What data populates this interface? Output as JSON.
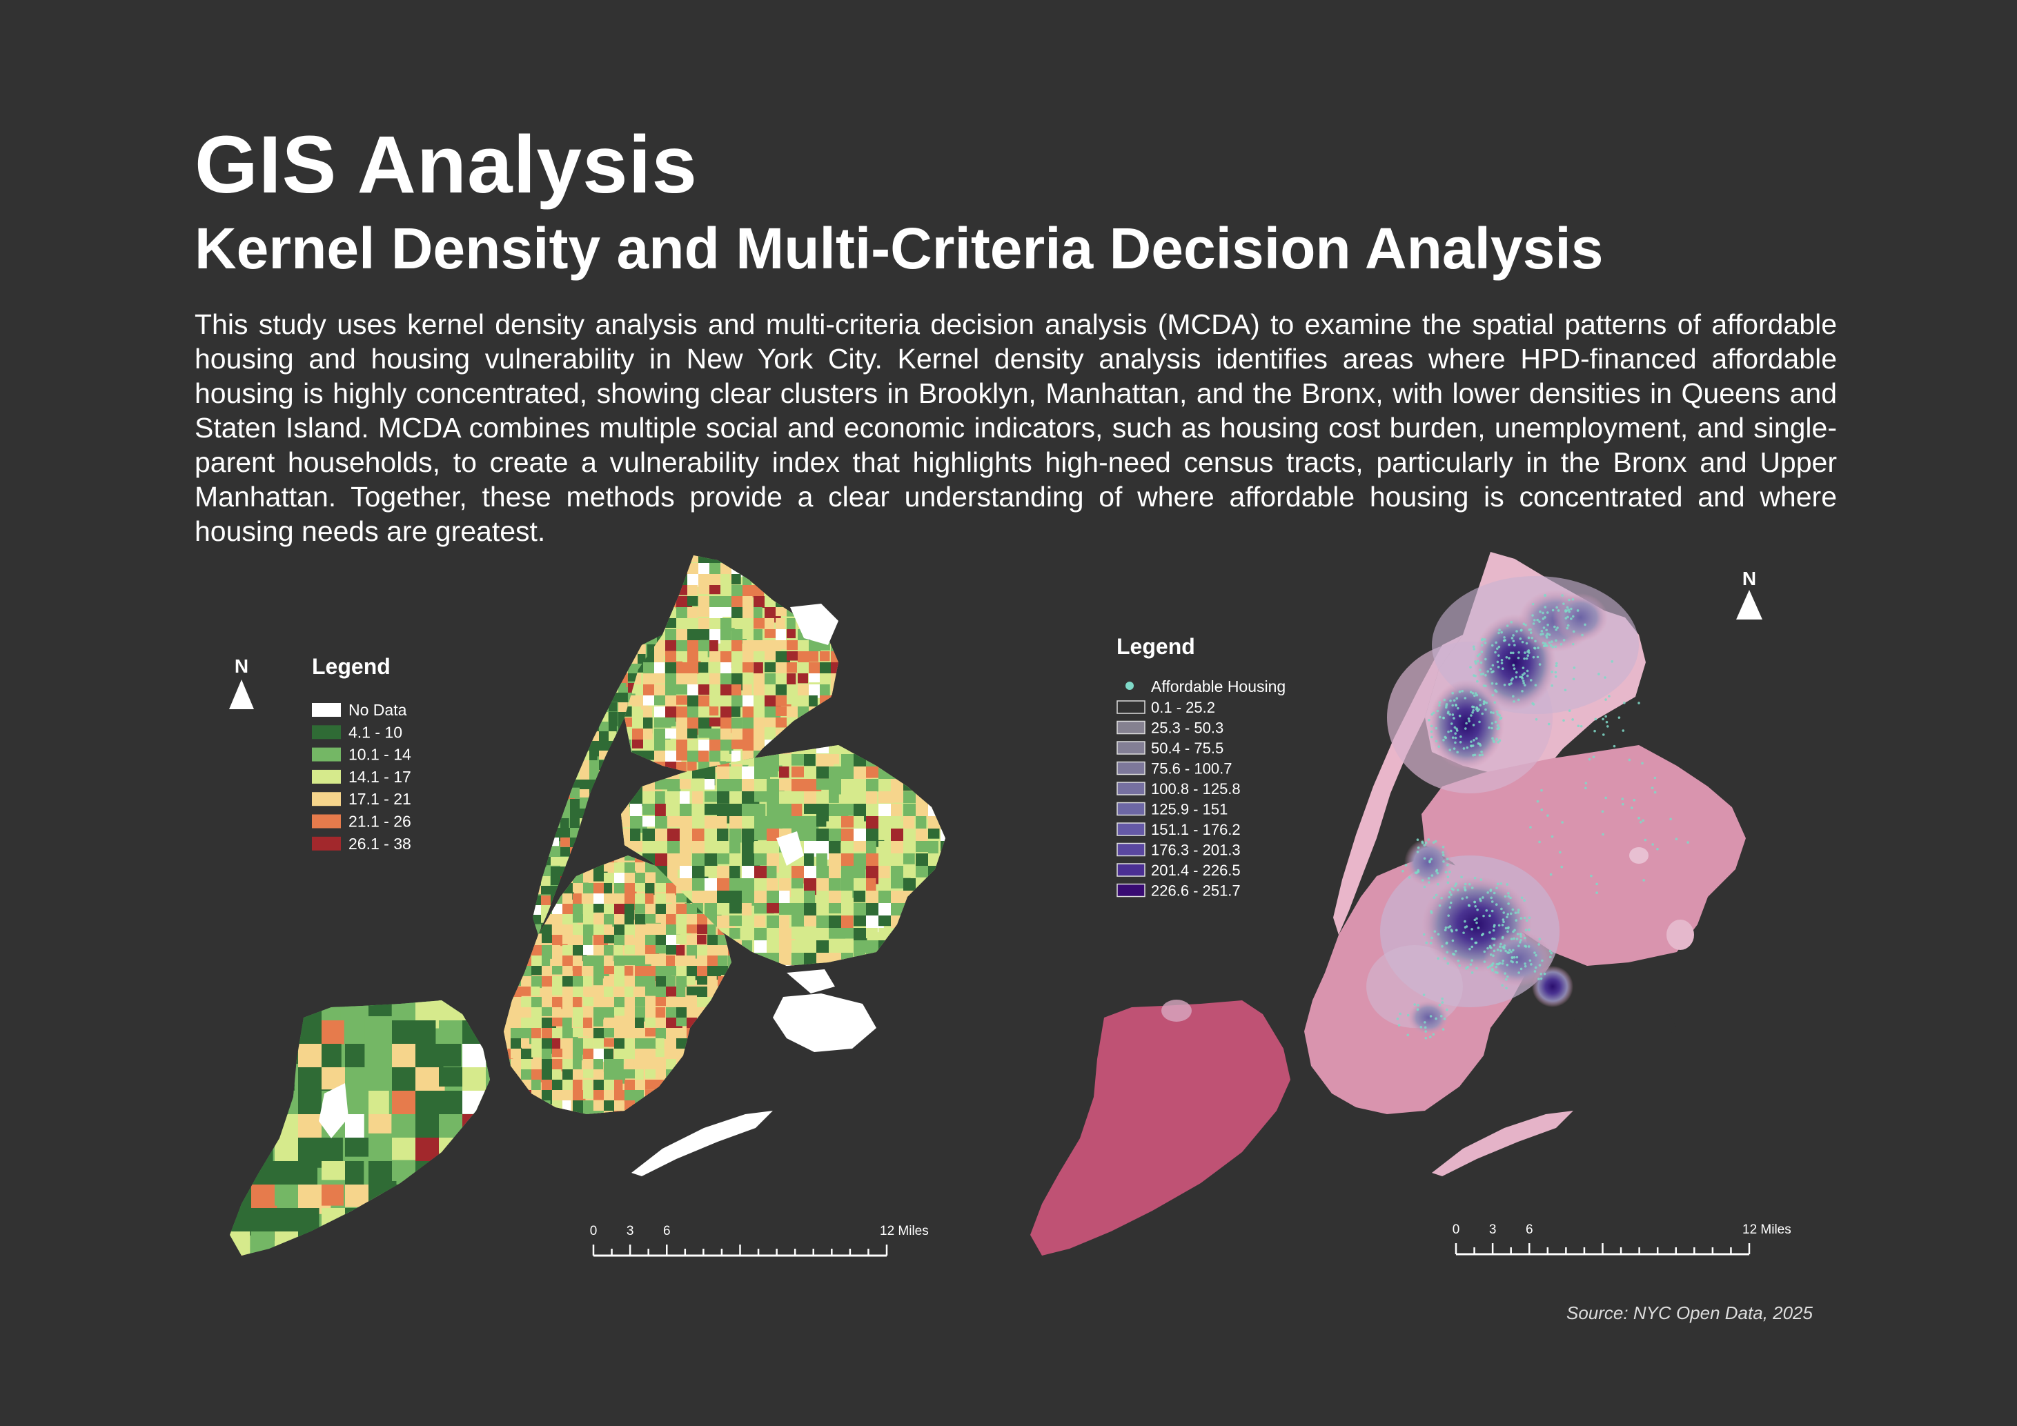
{
  "header": {
    "title": "GIS Analysis",
    "subtitle": "Kernel Density and Multi-Criteria Decision Analysis",
    "description": "This study uses kernel density analysis and multi-criteria decision analysis (MCDA) to examine the spatial patterns of affordable housing and housing vulnerability in New York City. Kernel density analysis identifies areas where HPD-financed affordable housing is highly concentrated, showing clear clusters in Brooklyn, Manhattan, and the Bronx, with lower densities in Queens and Staten Island. MCDA combines multiple social and economic indicators, such as housing cost burden, unemployment, and single-parent households, to create a vulnerability index that highlights high-need census tracts, particularly in the Bronx and Upper Manhattan. Together, these methods provide a clear understanding of where affordable housing is concentrated and where housing needs are greatest."
  },
  "mcda_map": {
    "north_label": "N",
    "legend_title": "Legend",
    "legend_items": [
      {
        "label": "No Data",
        "color": "#ffffff"
      },
      {
        "label": "4.1 - 10",
        "color": "#2f6b35"
      },
      {
        "label": "10.1 - 14",
        "color": "#74b765"
      },
      {
        "label": "14.1 - 17",
        "color": "#d6ea8c"
      },
      {
        "label": "17.1 - 21",
        "color": "#f6d58c"
      },
      {
        "label": "21.1 - 26",
        "color": "#e67b4c"
      },
      {
        "label": "26.1 - 38",
        "color": "#a2282c"
      }
    ],
    "scale_labels": [
      "0",
      "3",
      "6",
      "12  Miles"
    ]
  },
  "kernel_map": {
    "north_label": "N",
    "legend_title": "Legend",
    "points_label": "Affordable Housing",
    "points_color": "#7fd9c8",
    "legend_items": [
      {
        "label": "0.1 - 25.2",
        "color": "#323232"
      },
      {
        "label": "25.3 - 50.3",
        "color": "#858190"
      },
      {
        "label": "50.4 - 75.5",
        "color": "#837f95"
      },
      {
        "label": "75.6 - 100.7",
        "color": "#7d789a"
      },
      {
        "label": "100.8 - 125.8",
        "color": "#7670a0"
      },
      {
        "label": "125.9 - 151",
        "color": "#6d67a4"
      },
      {
        "label": "151.1 - 176.2",
        "color": "#6559a6"
      },
      {
        "label": "176.3 - 201.3",
        "color": "#5a47a0"
      },
      {
        "label": "201.4 - 226.5",
        "color": "#4b2f93"
      },
      {
        "label": "226.6 - 251.7",
        "color": "#380b72"
      }
    ],
    "scale_labels": [
      "0",
      "3",
      "6",
      "12  Miles"
    ]
  },
  "source": "Source: NYC Open Data, 2025"
}
